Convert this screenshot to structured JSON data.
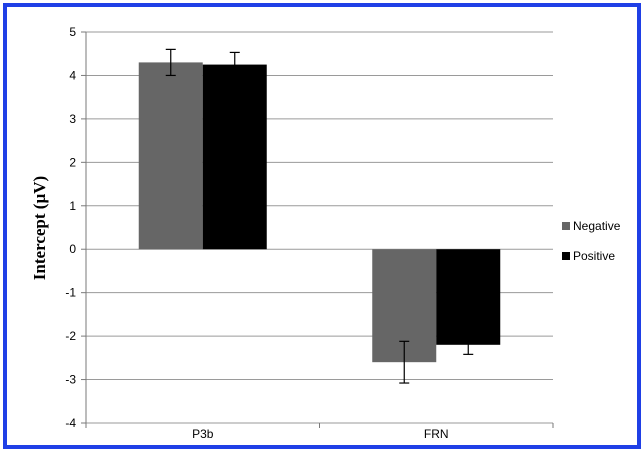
{
  "chart_data": {
    "type": "bar",
    "categories": [
      "P3b",
      "FRN"
    ],
    "series": [
      {
        "name": "Negative",
        "values": [
          4.3,
          -2.6
        ],
        "error": [
          0.3,
          0.48
        ],
        "color": "#666666"
      },
      {
        "name": "Positive",
        "values": [
          4.25,
          -2.2
        ],
        "error": [
          0.28,
          0.22
        ],
        "color": "#000000"
      }
    ],
    "title": "",
    "xlabel": "",
    "ylabel": "Intercept (µV)",
    "ylim": [
      -4,
      5
    ],
    "yticks": [
      "5",
      "4",
      "3",
      "2",
      "1",
      "0",
      "-1",
      "-2",
      "-3",
      "-4"
    ],
    "grid": true,
    "legend_position": "right",
    "frame_color": "#1f3fe6"
  }
}
